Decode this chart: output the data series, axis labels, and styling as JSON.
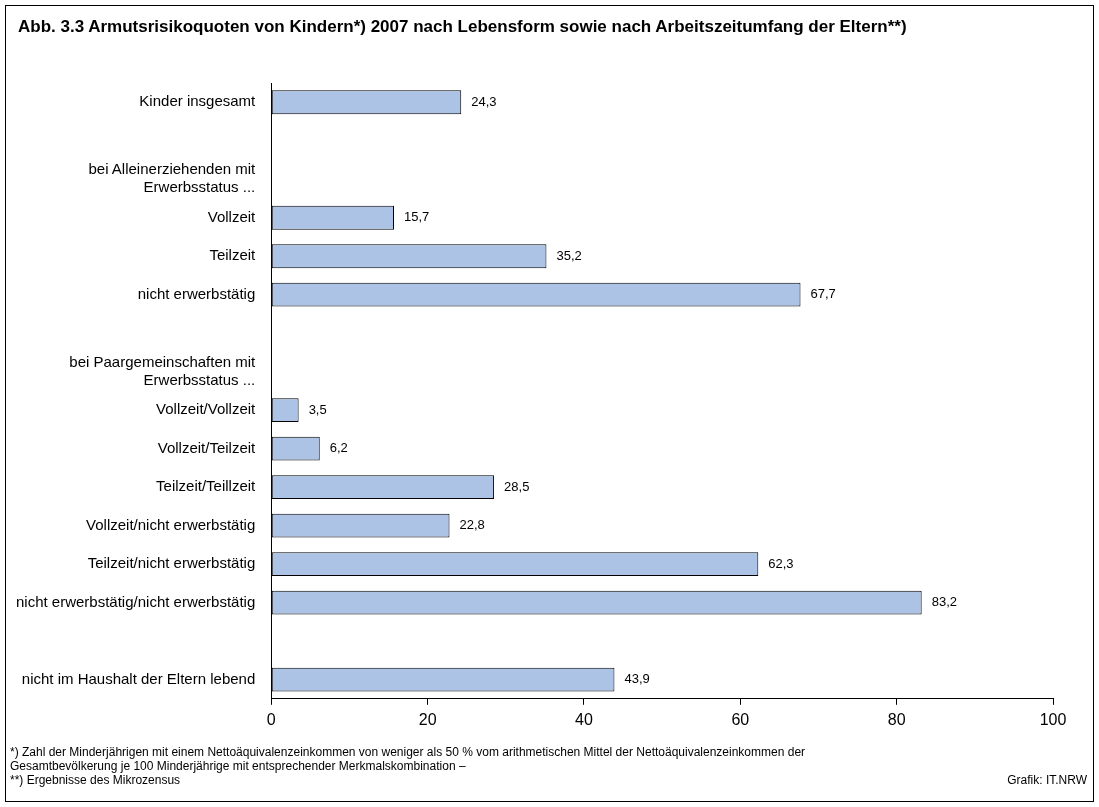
{
  "chart_data": {
    "type": "bar",
    "orientation": "horizontal",
    "title": "Abb. 3.3  Armutsrisikoquoten von Kindern*) 2007 nach Lebensform sowie nach Arbeitszeitumfang der Eltern**)",
    "categories": [
      "Kinder insgesamt",
      null,
      "bei Alleinerziehenden mit Erwerbsstatus ...",
      "Vollzeit",
      "Teilzeit",
      "nicht erwerbstätig",
      null,
      "bei Paargemeinschaften mit Erwerbsstatus ...",
      "Vollzeit/Vollzeit",
      "Vollzeit/Teilzeit",
      "Teilzeit/Teillzeit",
      "Vollzeit/nicht erwerbstätig",
      "Teilzeit/nicht erwerbstätig",
      "nicht erwerbstätig/nicht erwerbstätig",
      null,
      "nicht im Haushalt der Eltern lebend"
    ],
    "values": [
      24.3,
      null,
      null,
      15.7,
      35.2,
      67.7,
      null,
      null,
      3.5,
      6.2,
      28.5,
      22.8,
      62.3,
      83.2,
      null,
      43.9
    ],
    "value_labels": [
      "24,3",
      null,
      null,
      "15,7",
      "35,2",
      "67,7",
      null,
      null,
      "3,5",
      "6,2",
      "28,5",
      "22,8",
      "62,3",
      "83,2",
      null,
      "43,9"
    ],
    "color": "#adc3e6",
    "xlim": [
      0,
      100
    ],
    "xticks": [
      0,
      20,
      40,
      60,
      80,
      100
    ],
    "grid": false,
    "legend": false,
    "annotations": [
      "*) Zahl der Minderjährigen mit einem Nettoäquivalenzeinkommen von weniger als 50 % vom arithmetischen Mittel der Nettoäquivalenzeinkommen der Gesamtbevölkerung je 100 Minderjährige mit entsprechender Merkmalskombination –",
      "**) Ergebnisse des Mikrozensus",
      "Grafik: IT.NRW"
    ]
  }
}
